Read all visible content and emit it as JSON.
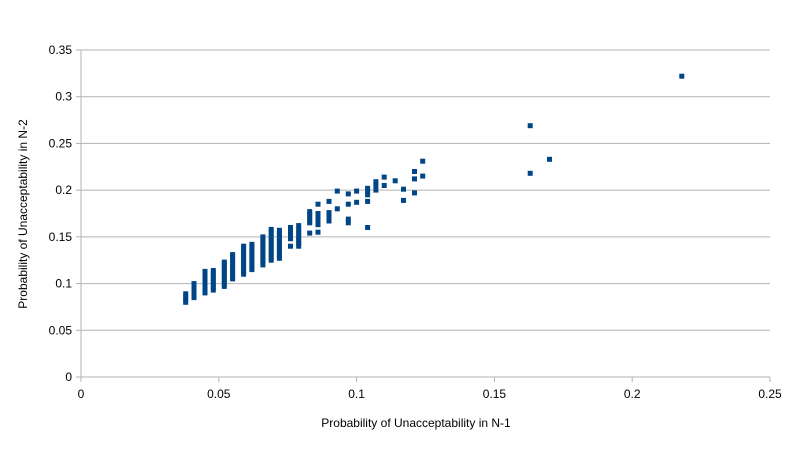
{
  "chart_data": {
    "type": "scatter",
    "title": "",
    "xlabel": "Probability of Unacceptability in N-1",
    "ylabel": "Probability of Unacceptability in N-2",
    "xlim": [
      0,
      0.25
    ],
    "ylim": [
      0,
      0.35
    ],
    "x_ticks": [
      "0",
      "0.05",
      "0.1",
      "0.15",
      "0.2",
      "0.25"
    ],
    "y_ticks": [
      "0",
      "0.05",
      "0.1",
      "0.15",
      "0.2",
      "0.25",
      "0.3",
      "0.35"
    ],
    "grid": "horizontal",
    "legend": "none",
    "marker_color": "#004586",
    "marker": "square",
    "points": [
      [
        0.038,
        0.08
      ],
      [
        0.038,
        0.083
      ],
      [
        0.038,
        0.086
      ],
      [
        0.038,
        0.089
      ],
      [
        0.041,
        0.085
      ],
      [
        0.041,
        0.088
      ],
      [
        0.041,
        0.091
      ],
      [
        0.041,
        0.094
      ],
      [
        0.041,
        0.097
      ],
      [
        0.041,
        0.1
      ],
      [
        0.045,
        0.09
      ],
      [
        0.045,
        0.093
      ],
      [
        0.045,
        0.096
      ],
      [
        0.045,
        0.099
      ],
      [
        0.045,
        0.102
      ],
      [
        0.045,
        0.105
      ],
      [
        0.045,
        0.108
      ],
      [
        0.045,
        0.111
      ],
      [
        0.045,
        0.113
      ],
      [
        0.048,
        0.093
      ],
      [
        0.048,
        0.096
      ],
      [
        0.048,
        0.099
      ],
      [
        0.048,
        0.102
      ],
      [
        0.048,
        0.105
      ],
      [
        0.048,
        0.108
      ],
      [
        0.048,
        0.111
      ],
      [
        0.048,
        0.114
      ],
      [
        0.052,
        0.097
      ],
      [
        0.052,
        0.1
      ],
      [
        0.052,
        0.103
      ],
      [
        0.052,
        0.106
      ],
      [
        0.052,
        0.109
      ],
      [
        0.052,
        0.112
      ],
      [
        0.052,
        0.115
      ],
      [
        0.052,
        0.118
      ],
      [
        0.052,
        0.121
      ],
      [
        0.052,
        0.123
      ],
      [
        0.055,
        0.105
      ],
      [
        0.055,
        0.108
      ],
      [
        0.055,
        0.111
      ],
      [
        0.055,
        0.114
      ],
      [
        0.055,
        0.117
      ],
      [
        0.055,
        0.12
      ],
      [
        0.055,
        0.123
      ],
      [
        0.055,
        0.126
      ],
      [
        0.055,
        0.129
      ],
      [
        0.055,
        0.131
      ],
      [
        0.059,
        0.11
      ],
      [
        0.059,
        0.113
      ],
      [
        0.059,
        0.116
      ],
      [
        0.059,
        0.119
      ],
      [
        0.059,
        0.122
      ],
      [
        0.059,
        0.125
      ],
      [
        0.059,
        0.128
      ],
      [
        0.059,
        0.131
      ],
      [
        0.059,
        0.134
      ],
      [
        0.059,
        0.137
      ],
      [
        0.059,
        0.14
      ],
      [
        0.062,
        0.115
      ],
      [
        0.062,
        0.118
      ],
      [
        0.062,
        0.121
      ],
      [
        0.062,
        0.124
      ],
      [
        0.062,
        0.127
      ],
      [
        0.062,
        0.13
      ],
      [
        0.062,
        0.133
      ],
      [
        0.062,
        0.136
      ],
      [
        0.062,
        0.139
      ],
      [
        0.062,
        0.142
      ],
      [
        0.066,
        0.12
      ],
      [
        0.066,
        0.123
      ],
      [
        0.066,
        0.126
      ],
      [
        0.066,
        0.129
      ],
      [
        0.066,
        0.132
      ],
      [
        0.066,
        0.135
      ],
      [
        0.066,
        0.138
      ],
      [
        0.066,
        0.141
      ],
      [
        0.066,
        0.144
      ],
      [
        0.066,
        0.147
      ],
      [
        0.066,
        0.15
      ],
      [
        0.069,
        0.125
      ],
      [
        0.069,
        0.128
      ],
      [
        0.069,
        0.131
      ],
      [
        0.069,
        0.134
      ],
      [
        0.069,
        0.137
      ],
      [
        0.069,
        0.14
      ],
      [
        0.069,
        0.143
      ],
      [
        0.069,
        0.146
      ],
      [
        0.069,
        0.149
      ],
      [
        0.069,
        0.152
      ],
      [
        0.069,
        0.155
      ],
      [
        0.069,
        0.158
      ],
      [
        0.072,
        0.127
      ],
      [
        0.072,
        0.13
      ],
      [
        0.072,
        0.133
      ],
      [
        0.072,
        0.136
      ],
      [
        0.072,
        0.139
      ],
      [
        0.072,
        0.142
      ],
      [
        0.072,
        0.145
      ],
      [
        0.072,
        0.148
      ],
      [
        0.072,
        0.151
      ],
      [
        0.072,
        0.154
      ],
      [
        0.072,
        0.157
      ],
      [
        0.076,
        0.14
      ],
      [
        0.076,
        0.148
      ],
      [
        0.076,
        0.151
      ],
      [
        0.076,
        0.154
      ],
      [
        0.076,
        0.157
      ],
      [
        0.076,
        0.16
      ],
      [
        0.079,
        0.14
      ],
      [
        0.079,
        0.143
      ],
      [
        0.079,
        0.146
      ],
      [
        0.079,
        0.149
      ],
      [
        0.079,
        0.152
      ],
      [
        0.079,
        0.155
      ],
      [
        0.079,
        0.158
      ],
      [
        0.079,
        0.162
      ],
      [
        0.083,
        0.154
      ],
      [
        0.083,
        0.165
      ],
      [
        0.083,
        0.168
      ],
      [
        0.083,
        0.171
      ],
      [
        0.083,
        0.174
      ],
      [
        0.083,
        0.177
      ],
      [
        0.086,
        0.155
      ],
      [
        0.086,
        0.163
      ],
      [
        0.086,
        0.166
      ],
      [
        0.086,
        0.169
      ],
      [
        0.086,
        0.172
      ],
      [
        0.086,
        0.175
      ],
      [
        0.086,
        0.185
      ],
      [
        0.09,
        0.167
      ],
      [
        0.09,
        0.17
      ],
      [
        0.09,
        0.173
      ],
      [
        0.09,
        0.176
      ],
      [
        0.09,
        0.188
      ],
      [
        0.093,
        0.18
      ],
      [
        0.093,
        0.199
      ],
      [
        0.097,
        0.165
      ],
      [
        0.097,
        0.169
      ],
      [
        0.097,
        0.185
      ],
      [
        0.097,
        0.196
      ],
      [
        0.1,
        0.187
      ],
      [
        0.1,
        0.199
      ],
      [
        0.104,
        0.16
      ],
      [
        0.104,
        0.188
      ],
      [
        0.104,
        0.195
      ],
      [
        0.104,
        0.199
      ],
      [
        0.104,
        0.202
      ],
      [
        0.107,
        0.2
      ],
      [
        0.107,
        0.205
      ],
      [
        0.107,
        0.209
      ],
      [
        0.11,
        0.205
      ],
      [
        0.11,
        0.214
      ],
      [
        0.114,
        0.21
      ],
      [
        0.117,
        0.189
      ],
      [
        0.117,
        0.201
      ],
      [
        0.121,
        0.197
      ],
      [
        0.121,
        0.212
      ],
      [
        0.121,
        0.22
      ],
      [
        0.124,
        0.215
      ],
      [
        0.124,
        0.231
      ],
      [
        0.163,
        0.218
      ],
      [
        0.163,
        0.269
      ],
      [
        0.17,
        0.233
      ],
      [
        0.218,
        0.322
      ]
    ]
  }
}
